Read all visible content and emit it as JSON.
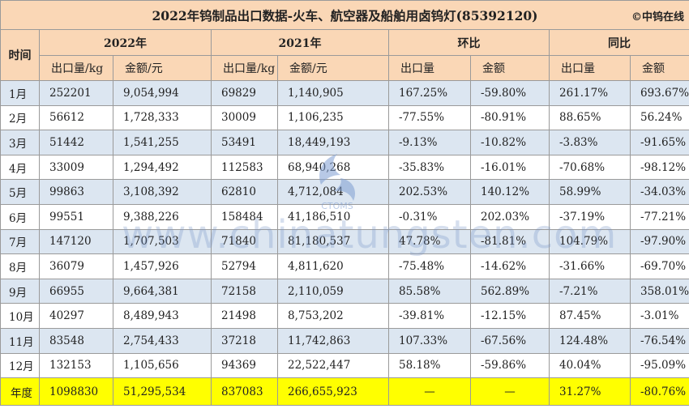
{
  "title": "2022年钨制品出口数据-火车、航空器及船舶用卤钨灯(85392120)",
  "brand": "©中钨在线",
  "watermark": {
    "text": "www.chinatungsten.com",
    "logo_text": "CTOMS",
    "color": "#7f9ed2"
  },
  "colors": {
    "header_bg": "#fad7b6",
    "odd_row": "#dce6f1",
    "total_row": "#ffff00",
    "positive": "#e31e24",
    "negative": "#1f9c3c"
  },
  "headers": {
    "time": "时间",
    "group_2022": "2022年",
    "group_2021": "2021年",
    "group_mom": "环比",
    "group_yoy": "同比",
    "qty": "出口量/kg",
    "amount": "金额/元",
    "qty_short": "出口量",
    "amount_short": "金额"
  },
  "rows": [
    {
      "month": "1月",
      "q2022": "252201",
      "a2022": "9,054,994",
      "q2021": "69829",
      "a2021": "1,140,905",
      "mom_q": "167.25%",
      "mom_a": "-59.80%",
      "yoy_q": "261.17%",
      "yoy_a": "693.67%"
    },
    {
      "month": "2月",
      "q2022": "56612",
      "a2022": "1,728,333",
      "q2021": "30009",
      "a2021": "1,106,235",
      "mom_q": "-77.55%",
      "mom_a": "-80.91%",
      "yoy_q": "88.65%",
      "yoy_a": "56.24%"
    },
    {
      "month": "3月",
      "q2022": "51442",
      "a2022": "1,541,255",
      "q2021": "53491",
      "a2021": "18,449,193",
      "mom_q": "-9.13%",
      "mom_a": "-10.82%",
      "yoy_q": "-3.83%",
      "yoy_a": "-91.65%"
    },
    {
      "month": "4月",
      "q2022": "33009",
      "a2022": "1,294,492",
      "q2021": "112583",
      "a2021": "68,940,268",
      "mom_q": "-35.83%",
      "mom_a": "-16.01%",
      "yoy_q": "-70.68%",
      "yoy_a": "-98.12%"
    },
    {
      "month": "5月",
      "q2022": "99863",
      "a2022": "3,108,392",
      "q2021": "62810",
      "a2021": "4,712,084",
      "mom_q": "202.53%",
      "mom_a": "140.12%",
      "yoy_q": "58.99%",
      "yoy_a": "-34.03%"
    },
    {
      "month": "6月",
      "q2022": "99551",
      "a2022": "9,388,226",
      "q2021": "158484",
      "a2021": "41,186,510",
      "mom_q": "-0.31%",
      "mom_a": "202.03%",
      "yoy_q": "-37.19%",
      "yoy_a": "-77.21%"
    },
    {
      "month": "7月",
      "q2022": "147120",
      "a2022": "1,707,503",
      "q2021": "71840",
      "a2021": "81,180,537",
      "mom_q": "47.78%",
      "mom_a": "-81.81%",
      "yoy_q": "104.79%",
      "yoy_a": "-97.90%"
    },
    {
      "month": "8月",
      "q2022": "36079",
      "a2022": "1,457,926",
      "q2021": "52794",
      "a2021": "4,811,620",
      "mom_q": "-75.48%",
      "mom_a": "-14.62%",
      "yoy_q": "-31.66%",
      "yoy_a": "-69.70%"
    },
    {
      "month": "9月",
      "q2022": "66955",
      "a2022": "9,664,381",
      "q2021": "72158",
      "a2021": "2,110,059",
      "mom_q": "85.58%",
      "mom_a": "562.89%",
      "yoy_q": "-7.21%",
      "yoy_a": "358.01%"
    },
    {
      "month": "10月",
      "q2022": "40297",
      "a2022": "8,489,943",
      "q2021": "21498",
      "a2021": "8,753,202",
      "mom_q": "-39.81%",
      "mom_a": "-12.15%",
      "yoy_q": "87.45%",
      "yoy_a": "-3.01%"
    },
    {
      "month": "11月",
      "q2022": "83548",
      "a2022": "2,754,433",
      "q2021": "37218",
      "a2021": "11,742,863",
      "mom_q": "107.33%",
      "mom_a": "-67.56%",
      "yoy_q": "124.48%",
      "yoy_a": "-76.54%"
    },
    {
      "month": "12月",
      "q2022": "132153",
      "a2022": "1,105,656",
      "q2021": "94369",
      "a2021": "22,522,447",
      "mom_q": "58.18%",
      "mom_a": "-59.86%",
      "yoy_q": "40.04%",
      "yoy_a": "-95.09%"
    }
  ],
  "total": {
    "label": "年度",
    "q2022": "1098830",
    "a2022": "51,295,534",
    "q2021": "837083",
    "a2021": "266,655,923",
    "mom_q": "—",
    "mom_a": "—",
    "yoy_q": "31.27%",
    "yoy_a": "-80.76%"
  }
}
